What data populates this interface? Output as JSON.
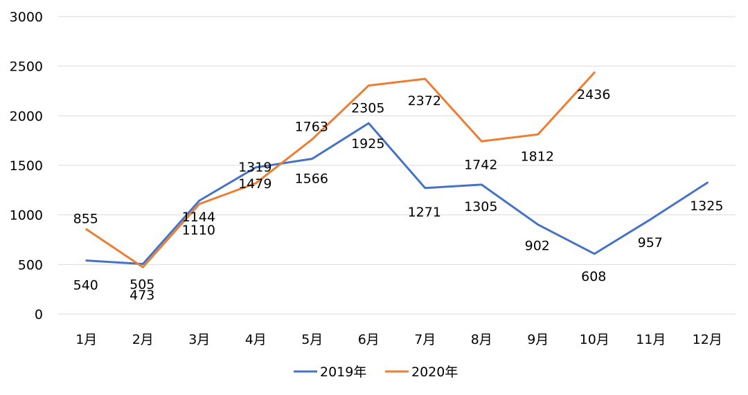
{
  "chart_data": {
    "type": "line",
    "categories": [
      "1月",
      "2月",
      "3月",
      "4月",
      "5月",
      "6月",
      "7月",
      "8月",
      "9月",
      "10月",
      "11月",
      "12月"
    ],
    "ylim": [
      0,
      3000
    ],
    "yticks": [
      0,
      500,
      1000,
      1500,
      2000,
      2500,
      3000
    ],
    "grid": true,
    "legend_position": "bottom",
    "series": [
      {
        "name": "2019年",
        "color": "#4472C4",
        "values": [
          540,
          505,
          1144,
          1479,
          1566,
          1925,
          1271,
          1305,
          902,
          608,
          957,
          1325
        ]
      },
      {
        "name": "2020年",
        "color": "#ED7D31",
        "values": [
          855,
          473,
          1110,
          1319,
          1763,
          2305,
          2372,
          1742,
          1812,
          2436,
          null,
          null
        ]
      }
    ]
  }
}
